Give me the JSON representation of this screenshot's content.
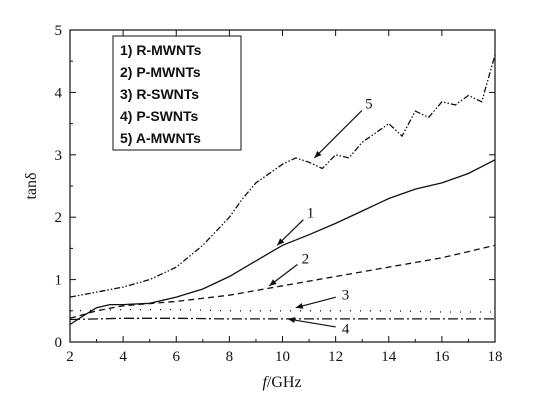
{
  "chart_data": {
    "type": "line",
    "xlabel_italic": "f",
    "xlabel_rest": "/GHz",
    "ylabel": "tanδ",
    "xlim": [
      2,
      18
    ],
    "ylim": [
      0,
      5
    ],
    "xticks": [
      2,
      4,
      6,
      8,
      10,
      12,
      14,
      16,
      18
    ],
    "yticks": [
      0,
      1,
      2,
      3,
      4,
      5
    ],
    "grid": false,
    "legend": {
      "placement": "top-left",
      "entries": [
        "1) R-MWNTs",
        "2) P-MWNTs",
        "3) R-SWNTs",
        "4) P-SWNTs",
        "5) A-MWNTs"
      ]
    },
    "series": [
      {
        "name": "R-MWNTs",
        "label": "1",
        "dash": "none",
        "x": [
          2,
          2.5,
          3,
          3.5,
          4,
          5,
          6,
          7,
          8,
          9,
          10,
          11,
          12,
          13,
          14,
          15,
          16,
          17,
          18
        ],
        "y": [
          0.28,
          0.42,
          0.55,
          0.6,
          0.6,
          0.62,
          0.72,
          0.85,
          1.05,
          1.3,
          1.55,
          1.72,
          1.9,
          2.1,
          2.3,
          2.45,
          2.55,
          2.7,
          2.92
        ]
      },
      {
        "name": "P-MWNTs",
        "label": "2",
        "dash": "6,4",
        "x": [
          2,
          3,
          4,
          6,
          8,
          10,
          12,
          14,
          16,
          18
        ],
        "y": [
          0.38,
          0.5,
          0.58,
          0.65,
          0.75,
          0.9,
          1.05,
          1.2,
          1.35,
          1.55
        ]
      },
      {
        "name": "R-SWNTs",
        "label": "3",
        "dash": "1,9",
        "x": [
          2,
          4,
          6,
          8,
          10,
          12,
          14,
          16,
          18
        ],
        "y": [
          0.5,
          0.52,
          0.52,
          0.5,
          0.5,
          0.5,
          0.5,
          0.48,
          0.48
        ]
      },
      {
        "name": "P-SWNTs",
        "label": "4",
        "dash": "10,3,2,3",
        "x": [
          2,
          4,
          6,
          8,
          10,
          12,
          14,
          16,
          18
        ],
        "y": [
          0.36,
          0.38,
          0.38,
          0.37,
          0.37,
          0.37,
          0.37,
          0.37,
          0.37
        ]
      },
      {
        "name": "A-MWNTs",
        "label": "5",
        "dash": "6,2,1.5,2,1.5,2",
        "x": [
          2,
          3,
          4,
          5,
          6,
          7,
          8,
          8.5,
          9,
          10,
          10.5,
          11,
          11.5,
          12,
          12.5,
          13,
          13.5,
          14,
          14.5,
          15,
          15.5,
          16,
          16.5,
          17,
          17.5,
          18
        ],
        "y": [
          0.72,
          0.8,
          0.88,
          1.0,
          1.2,
          1.55,
          2.0,
          2.3,
          2.55,
          2.85,
          2.95,
          2.88,
          2.78,
          3.0,
          2.95,
          3.2,
          3.35,
          3.5,
          3.3,
          3.7,
          3.6,
          3.85,
          3.8,
          3.95,
          3.85,
          4.6
        ]
      }
    ],
    "annotations": [
      {
        "text": "5",
        "label_at": [
          13.2,
          3.8
        ],
        "point_to": [
          11.2,
          2.95
        ]
      },
      {
        "text": "1",
        "label_at": [
          11.0,
          2.05
        ],
        "point_to": [
          9.8,
          1.55
        ]
      },
      {
        "text": "2",
        "label_at": [
          10.8,
          1.32
        ],
        "point_to": [
          9.5,
          0.9
        ]
      },
      {
        "text": "3",
        "label_at": [
          12.3,
          0.75
        ],
        "point_to": [
          10.5,
          0.55
        ]
      },
      {
        "text": "4",
        "label_at": [
          12.3,
          0.22
        ],
        "point_to": [
          10.2,
          0.37
        ]
      }
    ]
  }
}
